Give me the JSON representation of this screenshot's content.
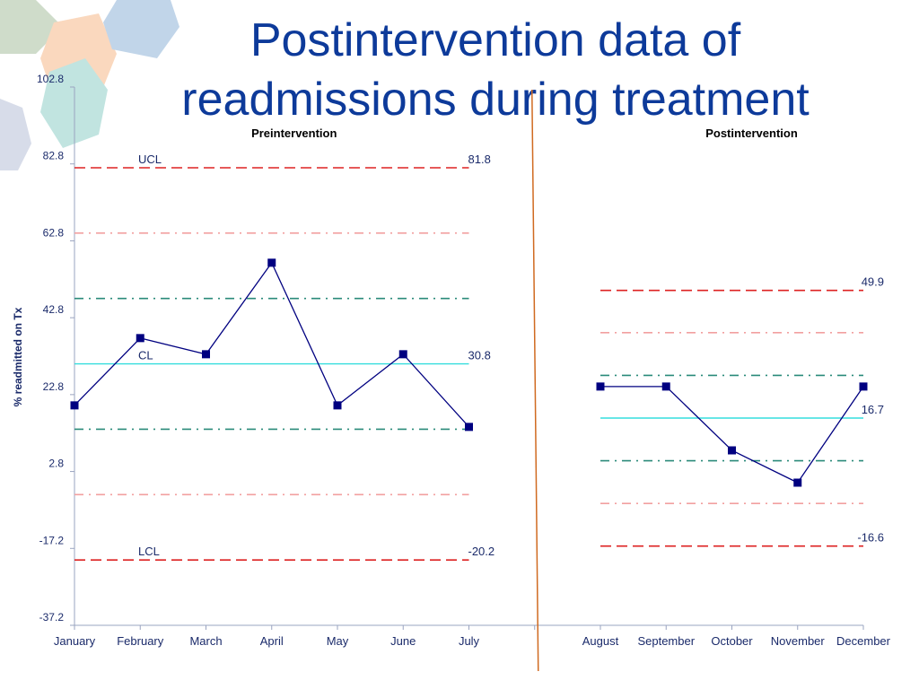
{
  "chart_data": {
    "type": "control",
    "title": [
      "Postintervention data of",
      "readmissions during treatment"
    ],
    "y_label": "% readmitted on Tx",
    "ylim": [
      -37.2,
      102.8
    ],
    "yticks": [
      -37.2,
      -17.2,
      2.8,
      22.8,
      42.8,
      62.8,
      82.8,
      102.8
    ],
    "line_color": "#000080",
    "limit_names": {
      "ucl": "UCL",
      "cl": "CL",
      "lcl": "LCL"
    },
    "colors": {
      "limit": "#dd2222",
      "center": "#33dddd",
      "sigma2": "#f2a0a0",
      "sigma1": "#2a8a7a",
      "divider": "#d06a20"
    },
    "phases": [
      {
        "title": "Preintervention",
        "categories": [
          "January",
          "February",
          "March",
          "April",
          "May",
          "June",
          "July"
        ],
        "values": [
          20.0,
          37.5,
          33.3,
          57.1,
          20.0,
          33.3,
          14.4
        ],
        "ucl": 81.8,
        "cl": 30.8,
        "lcl": -20.2,
        "sigma2": [
          64.8,
          -3.2
        ],
        "sigma1": [
          47.8,
          13.8
        ]
      },
      {
        "title": "Postintervention",
        "categories": [
          "August",
          "September",
          "October",
          "November",
          "December"
        ],
        "values": [
          24.9,
          24.9,
          8.3,
          -0.1,
          24.9
        ],
        "ucl": 49.9,
        "cl": 16.7,
        "lcl": -16.6,
        "sigma2": [
          38.9,
          -5.5
        ],
        "sigma1": [
          27.8,
          5.6
        ]
      }
    ]
  }
}
